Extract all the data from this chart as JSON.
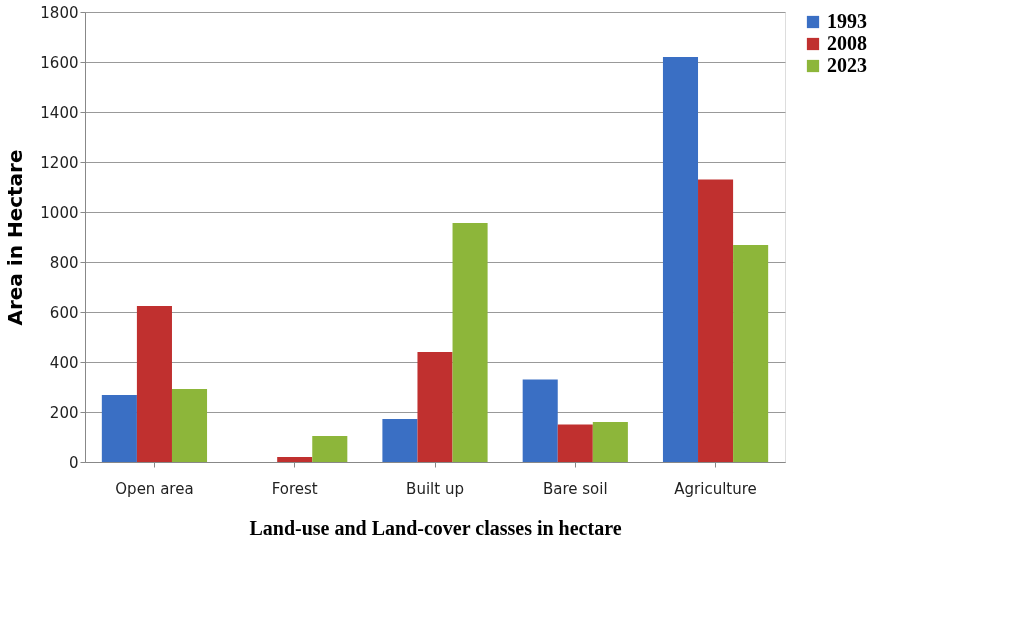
{
  "chart_data": {
    "type": "bar",
    "xlabel": "Land-use and Land-cover classes in hectare",
    "ylabel": "Area in Hectare",
    "categories": [
      "Open area",
      "Forest",
      "Built up",
      "Bare soil",
      "Agriculture"
    ],
    "series": [
      {
        "name": "1993",
        "color": "#3a6fc4",
        "values": [
          268,
          0,
          172,
          330,
          1620
        ]
      },
      {
        "name": "2008",
        "color": "#c0302f",
        "values": [
          624,
          20,
          440,
          150,
          1130
        ]
      },
      {
        "name": "2023",
        "color": "#8db63a",
        "values": [
          292,
          104,
          956,
          160,
          868
        ]
      }
    ],
    "ylim": [
      0,
      1800
    ],
    "yticks": [
      0,
      200,
      400,
      600,
      800,
      1000,
      1200,
      1400,
      1600,
      1800
    ],
    "grid": "y",
    "legend": "right"
  }
}
